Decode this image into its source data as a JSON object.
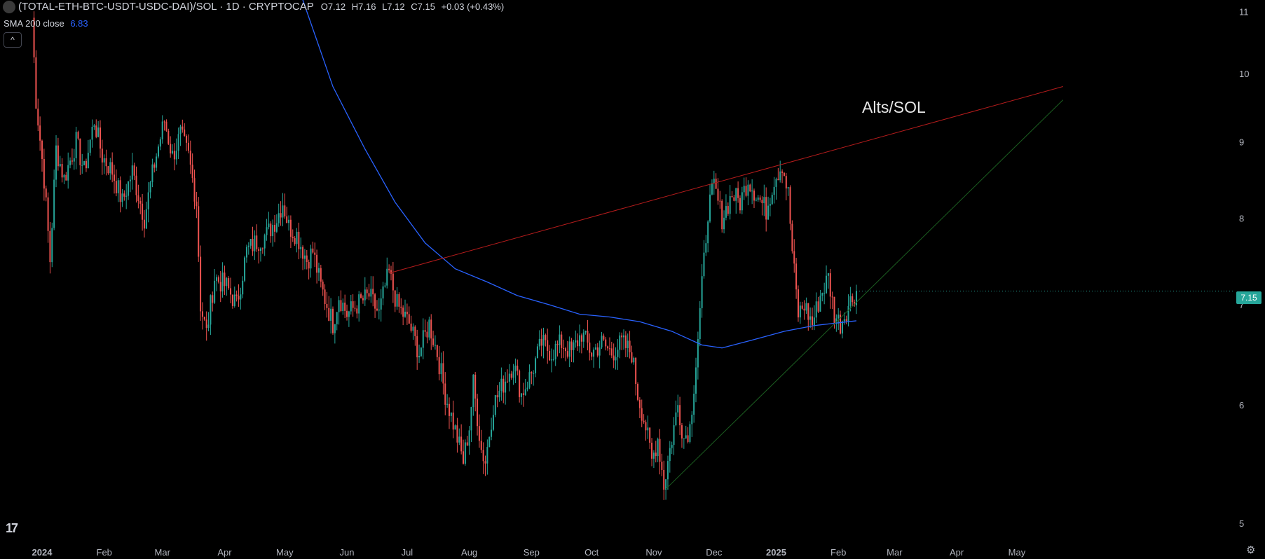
{
  "legend": {
    "title": "(TOTAL-ETH-BTC-USDT-USDC-DAI)/SOL · 1D · CRYPTOCAP",
    "open": "O7.12",
    "high": "H7.16",
    "low": "L7.12",
    "close": "C7.15",
    "change": "+0.03 (+0.43%)",
    "sma_label": "SMA 200 close",
    "sma_value": "6.83",
    "collapse_glyph": "^"
  },
  "annotation": "Alts/SOL",
  "last_price": "7.15",
  "logo_text": "17",
  "settings_icon": "gear-icon",
  "colors": {
    "up": "#26a69a",
    "down": "#ef5350",
    "sma": "#2962ff",
    "resistance": "#b71c1c",
    "support": "#1b5e20"
  },
  "chart_data": {
    "type": "candlestick",
    "y_scale": "log",
    "ylim": [
      4.85,
      11.15
    ],
    "y_ticks": [
      5,
      6,
      7,
      8,
      9,
      10,
      11
    ],
    "x_ticks": [
      {
        "date": "2024-01-01",
        "label": "2024"
      },
      {
        "date": "2024-02-01",
        "label": "Feb"
      },
      {
        "date": "2024-03-01",
        "label": "Mar"
      },
      {
        "date": "2024-04-01",
        "label": "Apr"
      },
      {
        "date": "2024-05-01",
        "label": "May"
      },
      {
        "date": "2024-06-01",
        "label": "Jun"
      },
      {
        "date": "2024-07-01",
        "label": "Jul"
      },
      {
        "date": "2024-08-01",
        "label": "Aug"
      },
      {
        "date": "2024-09-01",
        "label": "Sep"
      },
      {
        "date": "2024-10-01",
        "label": "Oct"
      },
      {
        "date": "2024-11-01",
        "label": "Nov"
      },
      {
        "date": "2024-12-01",
        "label": "Dec"
      },
      {
        "date": "2025-01-01",
        "label": "2025"
      },
      {
        "date": "2025-02-01",
        "label": "Feb"
      },
      {
        "date": "2025-03-01",
        "label": "Mar"
      },
      {
        "date": "2025-04-01",
        "label": "Apr"
      },
      {
        "date": "2025-05-01",
        "label": "May"
      }
    ],
    "close_path": [
      [
        "2023-12-27",
        10.9
      ],
      [
        "2023-12-29",
        9.6
      ],
      [
        "2024-01-02",
        8.5
      ],
      [
        "2024-01-05",
        7.5
      ],
      [
        "2024-01-08",
        8.9
      ],
      [
        "2024-01-12",
        8.5
      ],
      [
        "2024-01-18",
        9.0
      ],
      [
        "2024-01-22",
        8.6
      ],
      [
        "2024-01-27",
        9.3
      ],
      [
        "2024-01-31",
        8.8
      ],
      [
        "2024-02-05",
        8.6
      ],
      [
        "2024-02-10",
        8.2
      ],
      [
        "2024-02-15",
        8.6
      ],
      [
        "2024-02-21",
        8.0
      ],
      [
        "2024-02-26",
        8.7
      ],
      [
        "2024-03-02",
        9.3
      ],
      [
        "2024-03-06",
        8.8
      ],
      [
        "2024-03-10",
        9.1
      ],
      [
        "2024-03-14",
        8.8
      ],
      [
        "2024-03-18",
        8.2
      ],
      [
        "2024-03-20",
        7.0
      ],
      [
        "2024-03-23",
        6.7
      ],
      [
        "2024-03-27",
        7.3
      ],
      [
        "2024-04-02",
        7.2
      ],
      [
        "2024-04-07",
        7.0
      ],
      [
        "2024-04-12",
        7.6
      ],
      [
        "2024-04-16",
        7.7
      ],
      [
        "2024-04-22",
        7.8
      ],
      [
        "2024-04-27",
        8.0
      ],
      [
        "2024-04-30",
        8.2
      ],
      [
        "2024-05-03",
        7.9
      ],
      [
        "2024-05-07",
        7.8
      ],
      [
        "2024-05-12",
        7.5
      ],
      [
        "2024-05-15",
        7.6
      ],
      [
        "2024-05-19",
        7.2
      ],
      [
        "2024-05-22",
        7.0
      ],
      [
        "2024-05-25",
        6.8
      ],
      [
        "2024-05-28",
        7.1
      ],
      [
        "2024-06-01",
        6.9
      ],
      [
        "2024-06-06",
        7.0
      ],
      [
        "2024-06-12",
        7.1
      ],
      [
        "2024-06-17",
        6.9
      ],
      [
        "2024-06-20",
        7.2
      ],
      [
        "2024-06-22",
        7.35
      ],
      [
        "2024-06-26",
        7.0
      ],
      [
        "2024-07-02",
        6.8
      ],
      [
        "2024-07-07",
        6.5
      ],
      [
        "2024-07-12",
        6.8
      ],
      [
        "2024-07-16",
        6.5
      ],
      [
        "2024-07-20",
        6.1
      ],
      [
        "2024-07-26",
        5.7
      ],
      [
        "2024-07-29",
        5.5
      ],
      [
        "2024-08-01",
        5.8
      ],
      [
        "2024-08-03",
        6.2
      ],
      [
        "2024-08-07",
        5.6
      ],
      [
        "2024-08-09",
        5.5
      ],
      [
        "2024-08-13",
        6.0
      ],
      [
        "2024-08-18",
        6.2
      ],
      [
        "2024-08-23",
        6.4
      ],
      [
        "2024-08-27",
        6.1
      ],
      [
        "2024-09-01",
        6.3
      ],
      [
        "2024-09-06",
        6.6
      ],
      [
        "2024-09-11",
        6.5
      ],
      [
        "2024-09-16",
        6.6
      ],
      [
        "2024-09-21",
        6.5
      ],
      [
        "2024-09-26",
        6.7
      ],
      [
        "2024-10-01",
        6.5
      ],
      [
        "2024-10-06",
        6.6
      ],
      [
        "2024-10-11",
        6.5
      ],
      [
        "2024-10-16",
        6.6
      ],
      [
        "2024-10-21",
        6.5
      ],
      [
        "2024-10-24",
        6.1
      ],
      [
        "2024-10-28",
        5.8
      ],
      [
        "2024-10-31",
        5.5
      ],
      [
        "2024-11-03",
        5.7
      ],
      [
        "2024-11-06",
        5.3
      ],
      [
        "2024-11-09",
        5.6
      ],
      [
        "2024-11-13",
        6.0
      ],
      [
        "2024-11-16",
        5.7
      ],
      [
        "2024-11-19",
        5.8
      ],
      [
        "2024-11-22",
        6.4
      ],
      [
        "2024-11-25",
        7.2
      ],
      [
        "2024-11-28",
        8.1
      ],
      [
        "2024-12-01",
        8.4
      ],
      [
        "2024-12-05",
        8.0
      ],
      [
        "2024-12-10",
        8.3
      ],
      [
        "2024-12-14",
        8.2
      ],
      [
        "2024-12-18",
        8.5
      ],
      [
        "2024-12-22",
        8.3
      ],
      [
        "2024-12-27",
        8.1
      ],
      [
        "2024-12-31",
        8.5
      ],
      [
        "2025-01-04",
        8.7
      ],
      [
        "2025-01-07",
        8.3
      ],
      [
        "2025-01-09",
        7.6
      ],
      [
        "2025-01-12",
        6.9
      ],
      [
        "2025-01-15",
        7.0
      ],
      [
        "2025-01-19",
        6.8
      ],
      [
        "2025-01-23",
        7.1
      ],
      [
        "2025-01-27",
        7.3
      ],
      [
        "2025-01-30",
        6.9
      ],
      [
        "2025-02-02",
        6.8
      ],
      [
        "2025-02-06",
        7.0
      ],
      [
        "2025-02-10",
        7.15
      ]
    ],
    "sma": {
      "name": "SMA 200 close",
      "points": [
        [
          "2024-05-10",
          11.2
        ],
        [
          "2024-05-25",
          9.8
        ],
        [
          "2024-06-10",
          8.9
        ],
        [
          "2024-06-25",
          8.2
        ],
        [
          "2024-07-10",
          7.7
        ],
        [
          "2024-07-25",
          7.4
        ],
        [
          "2024-08-10",
          7.25
        ],
        [
          "2024-08-25",
          7.1
        ],
        [
          "2024-09-10",
          7.0
        ],
        [
          "2024-09-25",
          6.9
        ],
        [
          "2024-10-10",
          6.87
        ],
        [
          "2024-10-25",
          6.82
        ],
        [
          "2024-11-10",
          6.72
        ],
        [
          "2024-11-25",
          6.58
        ],
        [
          "2024-12-05",
          6.55
        ],
        [
          "2024-12-20",
          6.63
        ],
        [
          "2025-01-05",
          6.72
        ],
        [
          "2025-01-20",
          6.78
        ],
        [
          "2025-02-10",
          6.83
        ]
      ]
    },
    "trendlines": [
      {
        "start": [
          "2024-06-22",
          7.35
        ],
        "end": [
          "2025-05-24",
          9.8
        ]
      },
      {
        "start": [
          "2024-11-07",
          5.27
        ],
        "end": [
          "2025-05-24",
          9.6
        ]
      }
    ],
    "last_close": 7.15
  }
}
